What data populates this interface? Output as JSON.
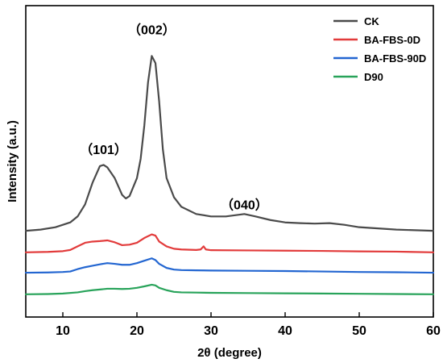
{
  "chart_data": {
    "type": "line",
    "title": "",
    "xlabel": "2θ (degree)",
    "ylabel": "Intensity (a.u.)",
    "xlim": [
      5,
      60
    ],
    "ylim": [
      0,
      1.3
    ],
    "x_ticks": [
      10,
      20,
      30,
      40,
      50,
      60
    ],
    "x_tick_labels": [
      "10",
      "20",
      "30",
      "40",
      "50",
      "60"
    ],
    "y_tick_labels": [],
    "grid": false,
    "legend_position": "top-right",
    "annotations": [
      {
        "text": "（101）",
        "x": 15.5,
        "y": 0.68
      },
      {
        "text": "（002）",
        "x": 22.0,
        "y": 1.18
      },
      {
        "text": "（040）",
        "x": 34.5,
        "y": 0.45
      }
    ],
    "series": [
      {
        "name": "CK",
        "color": "#4a4a4a",
        "points": [
          [
            5,
            0.36
          ],
          [
            7,
            0.365
          ],
          [
            9,
            0.375
          ],
          [
            11,
            0.395
          ],
          [
            12,
            0.42
          ],
          [
            13,
            0.47
          ],
          [
            14,
            0.56
          ],
          [
            15,
            0.63
          ],
          [
            15.5,
            0.635
          ],
          [
            16,
            0.625
          ],
          [
            17,
            0.58
          ],
          [
            18,
            0.51
          ],
          [
            18.5,
            0.495
          ],
          [
            19,
            0.505
          ],
          [
            20,
            0.58
          ],
          [
            20.5,
            0.66
          ],
          [
            21,
            0.8
          ],
          [
            21.5,
            0.98
          ],
          [
            22,
            1.09
          ],
          [
            22.5,
            1.06
          ],
          [
            23,
            0.9
          ],
          [
            23.5,
            0.7
          ],
          [
            24,
            0.58
          ],
          [
            25,
            0.5
          ],
          [
            26,
            0.46
          ],
          [
            28,
            0.43
          ],
          [
            30,
            0.42
          ],
          [
            32,
            0.42
          ],
          [
            34.5,
            0.43
          ],
          [
            36,
            0.42
          ],
          [
            38,
            0.405
          ],
          [
            40,
            0.395
          ],
          [
            42,
            0.392
          ],
          [
            44,
            0.39
          ],
          [
            46,
            0.392
          ],
          [
            48,
            0.385
          ],
          [
            50,
            0.375
          ],
          [
            55,
            0.365
          ],
          [
            60,
            0.36
          ]
        ]
      },
      {
        "name": "BA-FBS-0D",
        "color": "#e23b3b",
        "points": [
          [
            5,
            0.27
          ],
          [
            8,
            0.272
          ],
          [
            10,
            0.275
          ],
          [
            11,
            0.28
          ],
          [
            12,
            0.295
          ],
          [
            13,
            0.31
          ],
          [
            14,
            0.315
          ],
          [
            15,
            0.317
          ],
          [
            16,
            0.32
          ],
          [
            17,
            0.312
          ],
          [
            18,
            0.3
          ],
          [
            19,
            0.302
          ],
          [
            20,
            0.31
          ],
          [
            21,
            0.33
          ],
          [
            22,
            0.345
          ],
          [
            22.5,
            0.34
          ],
          [
            23,
            0.315
          ],
          [
            24,
            0.295
          ],
          [
            25,
            0.285
          ],
          [
            26,
            0.282
          ],
          [
            28,
            0.28
          ],
          [
            28.6,
            0.282
          ],
          [
            29,
            0.295
          ],
          [
            29.3,
            0.282
          ],
          [
            30,
            0.279
          ],
          [
            35,
            0.278
          ],
          [
            40,
            0.277
          ],
          [
            45,
            0.276
          ],
          [
            50,
            0.274
          ],
          [
            55,
            0.273
          ],
          [
            60,
            0.27
          ]
        ]
      },
      {
        "name": "BA-FBS-90D",
        "color": "#2366d1",
        "points": [
          [
            5,
            0.185
          ],
          [
            8,
            0.186
          ],
          [
            10,
            0.188
          ],
          [
            11,
            0.19
          ],
          [
            12,
            0.2
          ],
          [
            13,
            0.208
          ],
          [
            14,
            0.214
          ],
          [
            15,
            0.22
          ],
          [
            16,
            0.225
          ],
          [
            17,
            0.222
          ],
          [
            18,
            0.218
          ],
          [
            19,
            0.218
          ],
          [
            20,
            0.225
          ],
          [
            21,
            0.235
          ],
          [
            22,
            0.245
          ],
          [
            22.5,
            0.238
          ],
          [
            23,
            0.222
          ],
          [
            24,
            0.205
          ],
          [
            25,
            0.198
          ],
          [
            26,
            0.196
          ],
          [
            28,
            0.195
          ],
          [
            30,
            0.194
          ],
          [
            35,
            0.193
          ],
          [
            40,
            0.192
          ],
          [
            45,
            0.19
          ],
          [
            50,
            0.188
          ],
          [
            55,
            0.187
          ],
          [
            60,
            0.185
          ]
        ]
      },
      {
        "name": "D90",
        "color": "#28a35a",
        "points": [
          [
            5,
            0.095
          ],
          [
            8,
            0.096
          ],
          [
            10,
            0.098
          ],
          [
            12,
            0.103
          ],
          [
            13,
            0.108
          ],
          [
            14,
            0.112
          ],
          [
            15,
            0.115
          ],
          [
            16,
            0.118
          ],
          [
            17,
            0.118
          ],
          [
            18,
            0.117
          ],
          [
            19,
            0.118
          ],
          [
            20,
            0.122
          ],
          [
            21,
            0.128
          ],
          [
            22,
            0.135
          ],
          [
            22.5,
            0.132
          ],
          [
            23,
            0.122
          ],
          [
            24,
            0.112
          ],
          [
            25,
            0.105
          ],
          [
            26,
            0.103
          ],
          [
            28,
            0.102
          ],
          [
            30,
            0.101
          ],
          [
            35,
            0.1
          ],
          [
            40,
            0.099
          ],
          [
            45,
            0.098
          ],
          [
            50,
            0.097
          ],
          [
            55,
            0.096
          ],
          [
            60,
            0.095
          ]
        ]
      }
    ]
  }
}
